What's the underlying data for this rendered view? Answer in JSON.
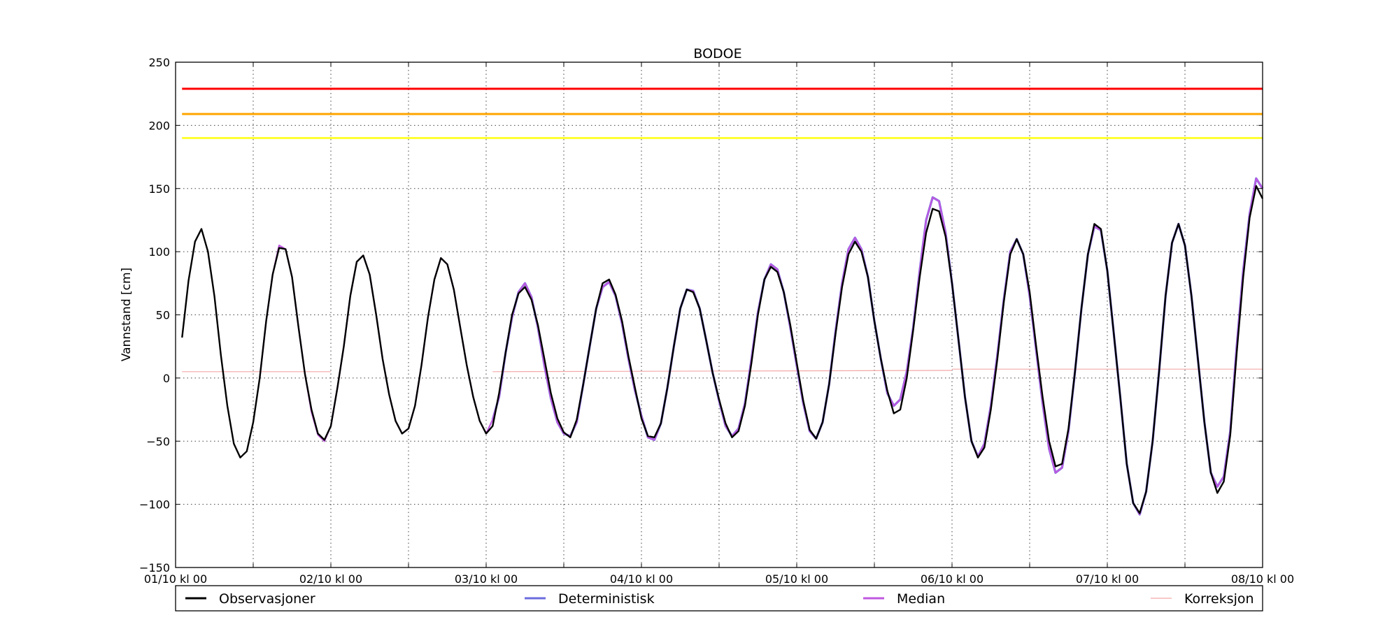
{
  "chart_data": {
    "type": "line",
    "title": "BODOE",
    "ylabel": "Vannstand [cm]",
    "xlabel": "",
    "ylim": [
      -150,
      250
    ],
    "yticks": [
      250,
      200,
      150,
      100,
      50,
      0,
      -50,
      -100,
      -150
    ],
    "ytick_labels": [
      "250",
      "200",
      "150",
      "100",
      "50",
      "0",
      "−50",
      "−100",
      "−150"
    ],
    "xlim_hours": [
      0,
      168
    ],
    "x_ticks": [
      {
        "hour": 0,
        "label": "01/10 kl 00"
      },
      {
        "hour": 12,
        "label": ""
      },
      {
        "hour": 24,
        "label": "02/10 kl 00"
      },
      {
        "hour": 36,
        "label": ""
      },
      {
        "hour": 48,
        "label": "03/10 kl 00"
      },
      {
        "hour": 60,
        "label": ""
      },
      {
        "hour": 72,
        "label": "04/10 kl 00"
      },
      {
        "hour": 84,
        "label": ""
      },
      {
        "hour": 96,
        "label": "05/10 kl 00"
      },
      {
        "hour": 108,
        "label": ""
      },
      {
        "hour": 120,
        "label": "06/10 kl 00"
      },
      {
        "hour": 132,
        "label": ""
      },
      {
        "hour": 144,
        "label": "07/10 kl 00"
      },
      {
        "hour": 156,
        "label": ""
      },
      {
        "hour": 168,
        "label": "08/10 kl 00"
      }
    ],
    "grid": true,
    "legend": {
      "position": "bottom",
      "entries": [
        "Observasjoner",
        "Deterministisk",
        "Median",
        "Korreksjon"
      ]
    },
    "thresholds": [
      {
        "y": 229,
        "color": "#ff0000"
      },
      {
        "y": 209,
        "color": "#ffa500"
      },
      {
        "y": 190,
        "color": "#ffff33"
      }
    ],
    "series": [
      {
        "name": "Observasjoner",
        "color": "#000000",
        "x": [
          1,
          2,
          3,
          4,
          5,
          6,
          7,
          8,
          9,
          10,
          11,
          12,
          13,
          14,
          15,
          16,
          17,
          18,
          19,
          20,
          21,
          22,
          23,
          24,
          25,
          26,
          27,
          28,
          29,
          30,
          31,
          32,
          33,
          34,
          35,
          36,
          37,
          38,
          39,
          40,
          41,
          42,
          43,
          44,
          45,
          46,
          47,
          48,
          49,
          50,
          51,
          52,
          53,
          54,
          55,
          56,
          57,
          58,
          59,
          60,
          61,
          62,
          63,
          64,
          65,
          66,
          67,
          68,
          69,
          70,
          71,
          72,
          73,
          74,
          75,
          76,
          77,
          78,
          79,
          80,
          81,
          82,
          83,
          84,
          85,
          86,
          87,
          88,
          89,
          90,
          91,
          92,
          93,
          94,
          95,
          96,
          97,
          98,
          99,
          100,
          101,
          102,
          103,
          104,
          105,
          106,
          107,
          108,
          109,
          110,
          111,
          112,
          113,
          114,
          115,
          116,
          117,
          118,
          119,
          120,
          121,
          122,
          123,
          124,
          125,
          126,
          127,
          128,
          129,
          130,
          131,
          132,
          133,
          134,
          135,
          136,
          137,
          138,
          139,
          140,
          141,
          142,
          143,
          144,
          145,
          146,
          147,
          148,
          149,
          150,
          151,
          152,
          153,
          154,
          155,
          156,
          157,
          158,
          159,
          160,
          161,
          162,
          163,
          164,
          165,
          166,
          167,
          168
        ],
        "y": [
          32,
          77,
          108,
          118,
          100,
          65,
          18,
          -22,
          -52,
          -63,
          -58,
          -35,
          0,
          45,
          82,
          103,
          102,
          80,
          40,
          3,
          -25,
          -44,
          -49,
          -38,
          -8,
          25,
          65,
          92,
          97,
          82,
          50,
          15,
          -13,
          -34,
          -44,
          -40,
          -22,
          10,
          48,
          78,
          95,
          90,
          70,
          40,
          10,
          -15,
          -34,
          -44,
          -38,
          -12,
          20,
          50,
          67,
          72,
          62,
          42,
          15,
          -12,
          -32,
          -43,
          -47,
          -33,
          -5,
          25,
          55,
          75,
          78,
          66,
          45,
          17,
          -8,
          -32,
          -46,
          -47,
          -36,
          -8,
          25,
          55,
          70,
          68,
          55,
          30,
          4,
          -17,
          -36,
          -47,
          -42,
          -22,
          12,
          50,
          78,
          88,
          84,
          68,
          42,
          12,
          -18,
          -41,
          -48,
          -35,
          -5,
          35,
          72,
          98,
          108,
          100,
          80,
          45,
          15,
          -10,
          -28,
          -25,
          0,
          38,
          80,
          115,
          134,
          132,
          112,
          75,
          30,
          -15,
          -50,
          -63,
          -55,
          -25,
          15,
          60,
          98,
          110,
          98,
          68,
          25,
          -15,
          -50,
          -70,
          -68,
          -40,
          5,
          55,
          98,
          122,
          118,
          85,
          35,
          -15,
          -68,
          -99,
          -107,
          -90,
          -50,
          5,
          65,
          107,
          122,
          105,
          65,
          15,
          -35,
          -75,
          -91,
          -82,
          -45,
          20,
          80,
          127,
          152,
          142
        ]
      },
      {
        "name": "Deterministisk",
        "color": "#6b6bdf",
        "x": [
          49,
          50,
          51,
          52,
          53,
          54,
          55,
          56,
          57,
          58,
          59,
          60,
          61,
          62,
          63,
          64,
          65,
          66,
          67,
          68,
          69,
          70,
          71,
          72,
          73,
          74,
          75,
          76,
          77,
          78,
          79,
          80,
          81,
          82,
          83,
          84,
          85,
          86,
          87,
          88,
          89,
          90,
          91,
          92,
          93,
          94,
          95,
          96,
          97,
          98,
          99,
          100,
          101,
          102,
          103,
          104,
          105,
          106,
          107,
          108,
          109,
          110,
          111,
          112,
          113,
          114,
          115,
          116,
          117,
          118,
          119,
          120,
          121,
          122,
          123,
          124,
          125,
          126,
          127,
          128,
          129,
          130,
          131,
          132,
          133,
          134,
          135,
          136,
          137,
          138,
          139,
          140,
          141,
          142,
          143,
          144,
          145,
          146,
          147,
          148,
          149,
          150,
          151,
          152,
          153,
          154,
          155,
          156,
          157,
          158,
          159,
          160,
          161,
          162,
          163,
          164,
          165,
          166,
          167,
          168
        ],
        "y": [
          -33,
          -15,
          20,
          48,
          68,
          75,
          64,
          40,
          10,
          -16,
          -35,
          -44,
          -46,
          -35,
          -5,
          25,
          55,
          72,
          76,
          65,
          43,
          15,
          -10,
          -30,
          -47,
          -49,
          -36,
          -8,
          25,
          55,
          70,
          69,
          55,
          30,
          4,
          -18,
          -38,
          -46,
          -40,
          -20,
          15,
          52,
          78,
          90,
          86,
          68,
          40,
          10,
          -20,
          -42,
          -48,
          -35,
          -5,
          37,
          75,
          102,
          111,
          102,
          80,
          45,
          15,
          -12,
          -22,
          -17,
          5,
          40,
          85,
          125,
          143,
          140,
          115,
          75,
          30,
          -15,
          -50,
          -62,
          -52,
          -22,
          18,
          62,
          100,
          110,
          98,
          65,
          22,
          -20,
          -56,
          -75,
          -71,
          -42,
          5,
          55,
          98,
          120,
          117,
          85,
          35,
          -15,
          -68,
          -99,
          -108,
          -90,
          -50,
          5,
          65,
          107,
          122,
          105,
          65,
          15,
          -35,
          -75,
          -86,
          -78,
          -42,
          25,
          85,
          130,
          158,
          150
        ]
      },
      {
        "name": "Median",
        "color": "#c058e0",
        "x": [
          13,
          14,
          15,
          16,
          17,
          18,
          19,
          20,
          21,
          22,
          23,
          24,
          25,
          26,
          27,
          28,
          29,
          30,
          31,
          32,
          33,
          34,
          35,
          36,
          37,
          38,
          39,
          40,
          41,
          42,
          43,
          44,
          45,
          46,
          47,
          48,
          49,
          50,
          51,
          52,
          53,
          54,
          55,
          56,
          57,
          58,
          59,
          60,
          61,
          62,
          63,
          64,
          65,
          66,
          67,
          68,
          69,
          70,
          71,
          72,
          73,
          74,
          75,
          76,
          77,
          78,
          79,
          80,
          81,
          82,
          83,
          84,
          85,
          86,
          87,
          88,
          89,
          90,
          91,
          92,
          93,
          94,
          95,
          96,
          97,
          98,
          99,
          100,
          101,
          102,
          103,
          104,
          105,
          106,
          107,
          108,
          109,
          110,
          111,
          112,
          113,
          114,
          115,
          116,
          117,
          118,
          119,
          120,
          121,
          122,
          123,
          124,
          125,
          126,
          127,
          128,
          129,
          130,
          131,
          132,
          133,
          134,
          135,
          136,
          137,
          138,
          139,
          140,
          141,
          142,
          143,
          144,
          145,
          146,
          147,
          148,
          149,
          150,
          151,
          152,
          153,
          154,
          155,
          156,
          157,
          158,
          159,
          160,
          161,
          162,
          163,
          164,
          165,
          166,
          167,
          168
        ],
        "y": [
          0,
          45,
          82,
          105,
          102,
          80,
          40,
          3,
          -27,
          -45,
          -50,
          -38,
          -8,
          25,
          65,
          92,
          97,
          82,
          50,
          15,
          -13,
          -34,
          -44,
          -40,
          -22,
          10,
          48,
          78,
          95,
          90,
          70,
          40,
          10,
          -15,
          -34,
          -44,
          -33,
          -15,
          20,
          48,
          68,
          75,
          64,
          40,
          10,
          -16,
          -35,
          -44,
          -46,
          -35,
          -5,
          25,
          55,
          72,
          76,
          65,
          43,
          15,
          -10,
          -30,
          -47,
          -49,
          -36,
          -8,
          25,
          55,
          70,
          69,
          55,
          30,
          4,
          -18,
          -38,
          -46,
          -40,
          -20,
          15,
          52,
          78,
          90,
          86,
          68,
          40,
          10,
          -20,
          -42,
          -48,
          -35,
          -5,
          37,
          75,
          102,
          111,
          102,
          80,
          45,
          15,
          -12,
          -22,
          -17,
          5,
          40,
          85,
          125,
          143,
          140,
          115,
          75,
          30,
          -15,
          -50,
          -62,
          -52,
          -22,
          18,
          62,
          100,
          110,
          98,
          65,
          22,
          -20,
          -56,
          -75,
          -71,
          -42,
          5,
          55,
          98,
          120,
          117,
          85,
          35,
          -15,
          -68,
          -99,
          -108,
          -90,
          -50,
          5,
          65,
          107,
          122,
          105,
          65,
          15,
          -35,
          -75,
          -86,
          -78,
          -42,
          25,
          85,
          130,
          158,
          150
        ]
      },
      {
        "name": "Korreksjon",
        "color": "#f4a8a8",
        "segments": [
          {
            "x": [
              1,
              24
            ],
            "y": [
              5,
              5
            ]
          },
          {
            "x": [
              49,
              120
            ],
            "y": [
              5,
              6
            ]
          },
          {
            "x": [
              120,
              168
            ],
            "y": [
              7,
              7
            ]
          }
        ]
      }
    ]
  }
}
